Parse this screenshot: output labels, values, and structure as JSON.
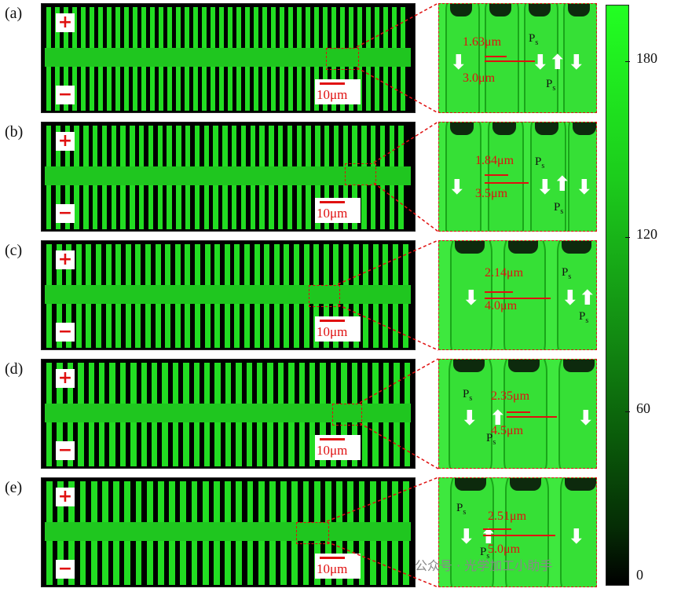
{
  "panels": [
    {
      "label": "(a)",
      "plus": "+",
      "minus": "−",
      "scale": "10μm",
      "top_meas": "1.63μm",
      "bottom_meas": "3.0μm",
      "ps": "P",
      "ps_sub": "s"
    },
    {
      "label": "(b)",
      "plus": "+",
      "minus": "−",
      "scale": "10μm",
      "top_meas": "1.84μm",
      "bottom_meas": "3.5μm",
      "ps": "P",
      "ps_sub": "s"
    },
    {
      "label": "(c)",
      "plus": "+",
      "minus": "−",
      "scale": "10μm",
      "top_meas": "2.14μm",
      "bottom_meas": "4.0μm",
      "ps": "P",
      "ps_sub": "s"
    },
    {
      "label": "(d)",
      "plus": "+",
      "minus": "−",
      "scale": "10μm",
      "top_meas": "2.35μm",
      "bottom_meas": "4.5μm",
      "ps": "P",
      "ps_sub": "s"
    },
    {
      "label": "(e)",
      "plus": "+",
      "minus": "−",
      "scale": "10μm",
      "top_meas": "2.51μm",
      "bottom_meas": "5.0μm",
      "ps": "P",
      "ps_sub": "s"
    }
  ],
  "colorbar": {
    "ticks": [
      "180",
      "120",
      "60",
      "0"
    ],
    "top_color": "#22ff22",
    "bottom_color": "#000000"
  },
  "watermark": "公众号 · 光学加工小助手",
  "colors": {
    "accent": "#e01010",
    "green": "#22dd22"
  }
}
